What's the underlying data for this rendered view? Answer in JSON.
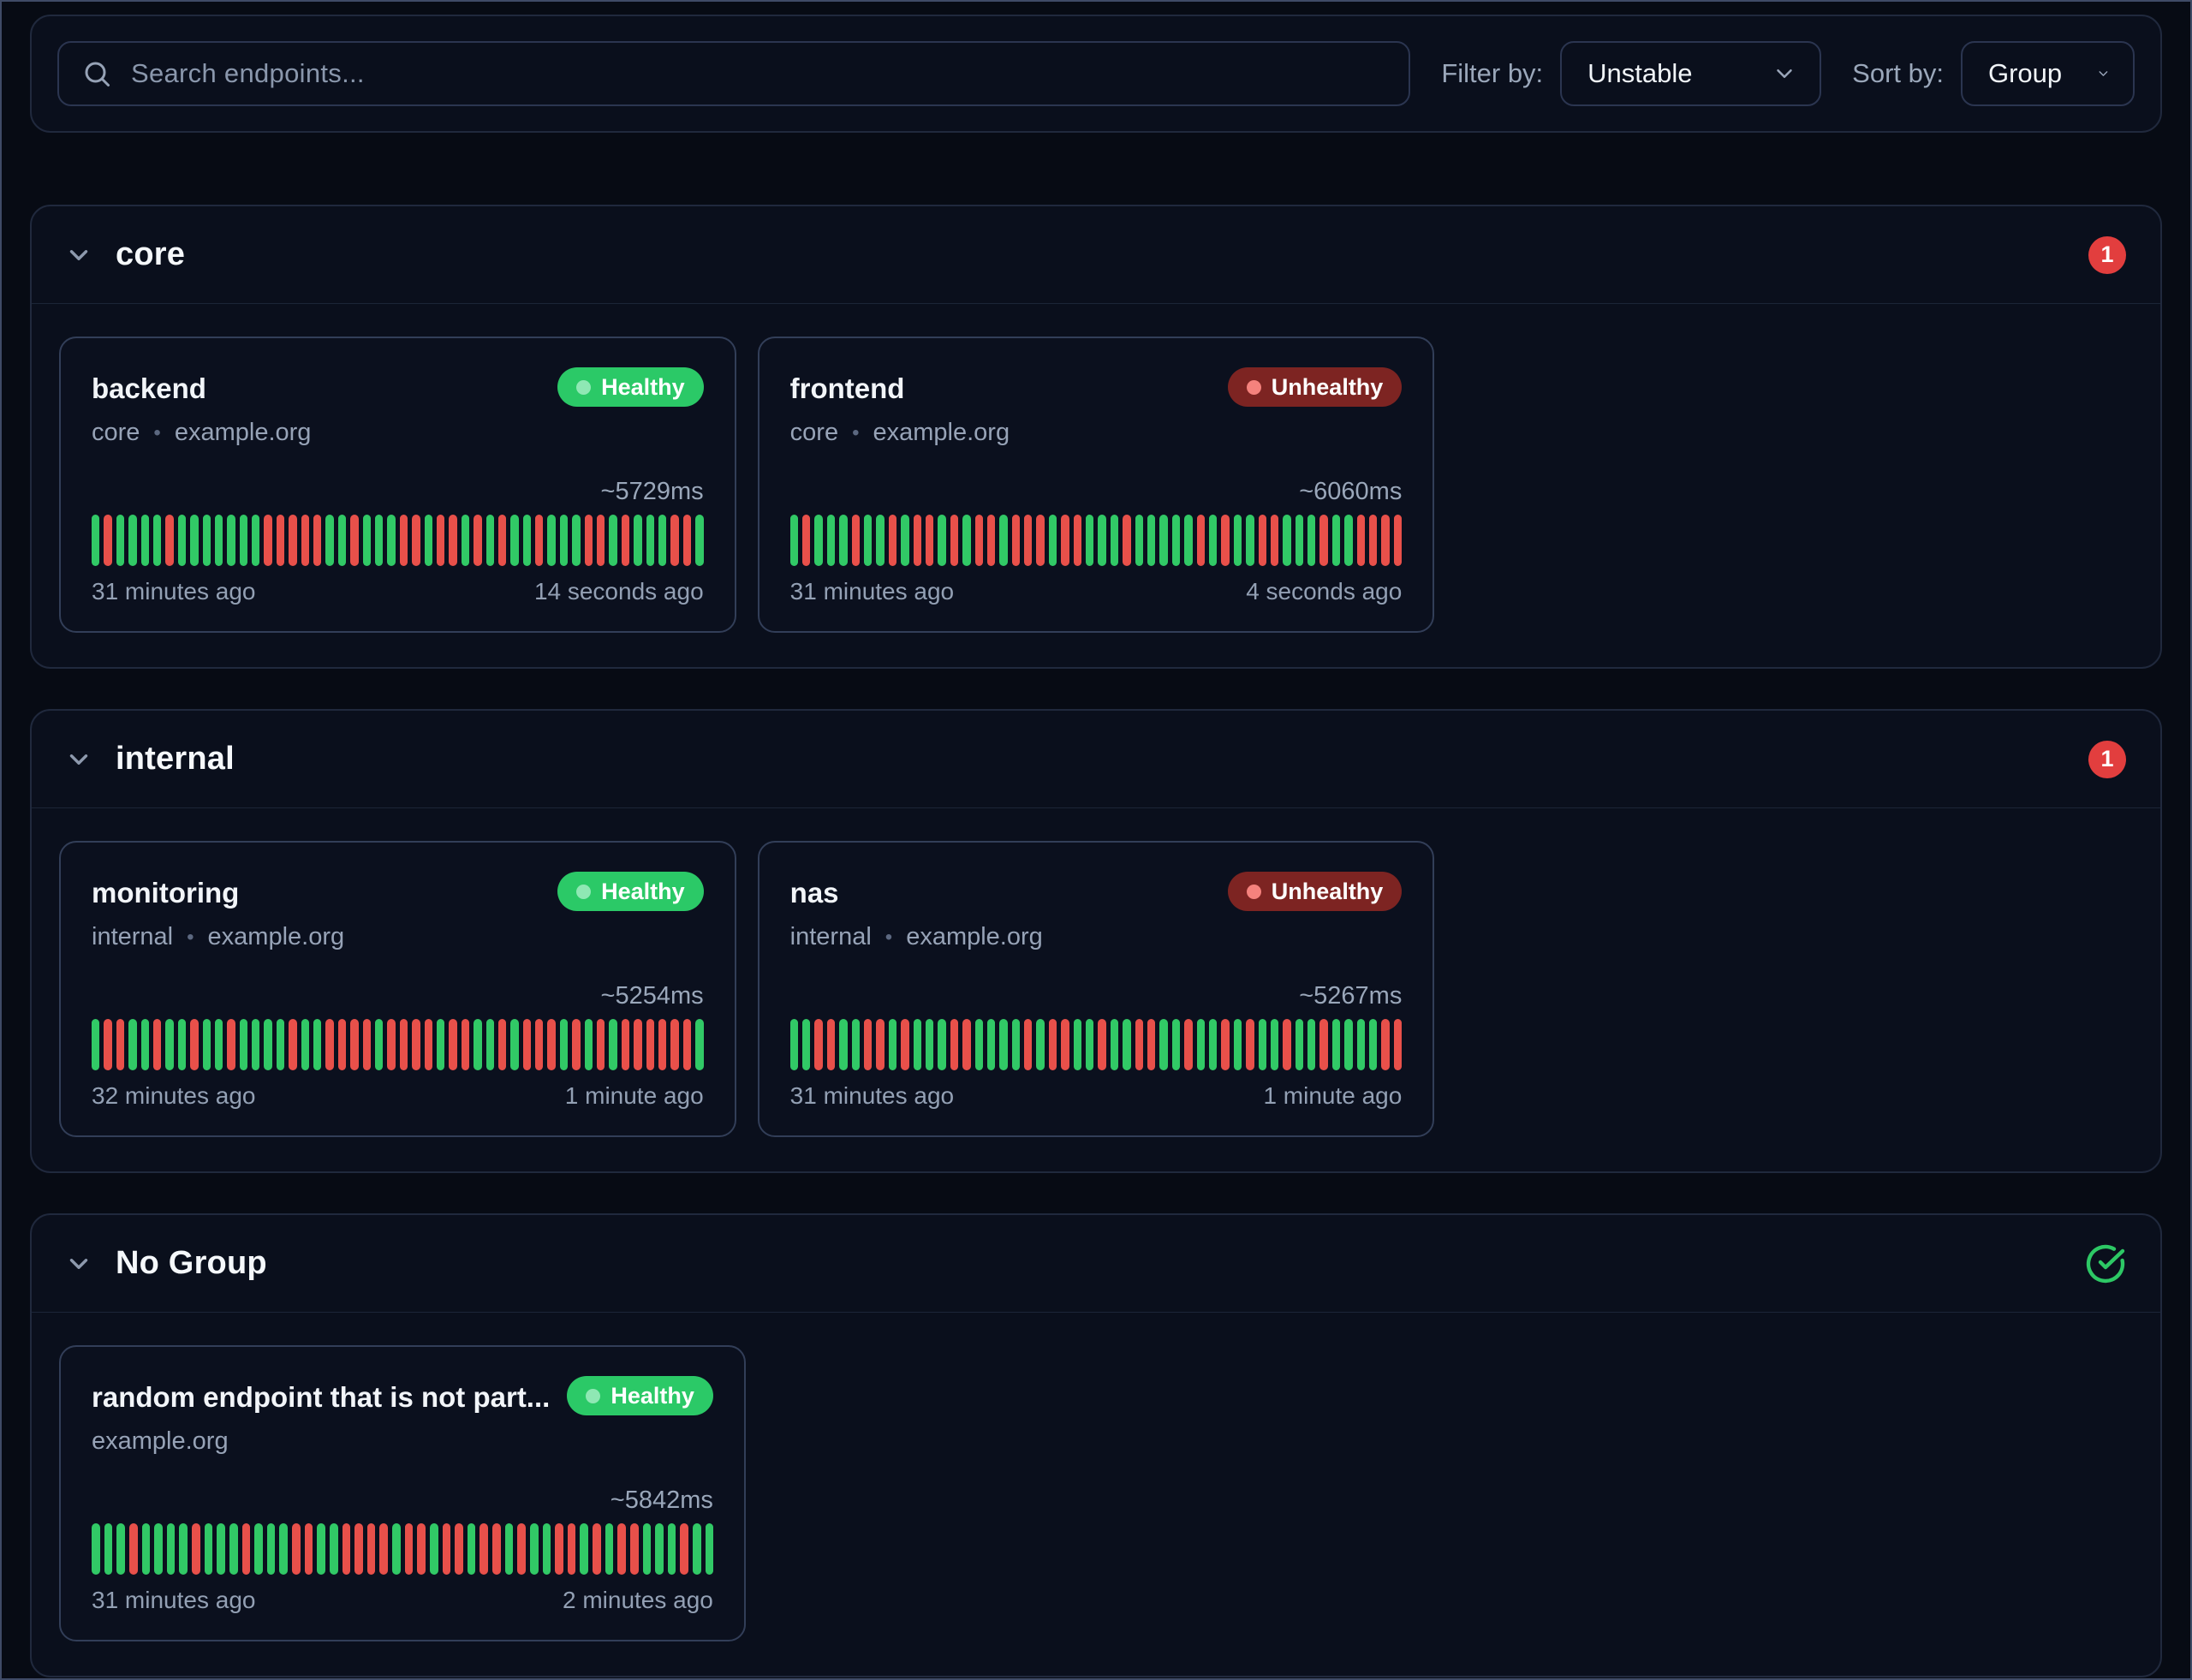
{
  "toolbar": {
    "search_placeholder": "Search endpoints...",
    "filter_label": "Filter by:",
    "filter_value": "Unstable",
    "sort_label": "Sort by:",
    "sort_value": "Group"
  },
  "colors": {
    "background": "#070b14",
    "panel": "#0a0f1c",
    "card": "#0b101e",
    "healthy_green": "#2bc967",
    "unhealthy_maroon": "#7d2422",
    "bar_green": "#31c966",
    "bar_red": "#e8504a",
    "count_badge_red": "#e23e3e",
    "check_green": "#2dc865"
  },
  "groups": [
    {
      "name": "core",
      "badge_type": "count",
      "badge": "1",
      "endpoints": [
        {
          "name": "backend",
          "status": "Healthy",
          "group_label": "core",
          "host": "example.org",
          "response_time": "~5729ms",
          "oldest": "31 minutes ago",
          "newest": "14 seconds ago",
          "history": "GRGGGGRGGGGGGGRRRRRGGRGGGRRGRRGRGRGGRGGGRRGRGGGRRG"
        },
        {
          "name": "frontend",
          "status": "Unhealthy",
          "group_label": "core",
          "host": "example.org",
          "response_time": "~6060ms",
          "oldest": "31 minutes ago",
          "newest": "4 seconds ago",
          "history": "GRGGGRGGRGRRGRGRRGRRRGRRGGGRGGGGGRGRGGRRGGGRGGRRRR"
        }
      ]
    },
    {
      "name": "internal",
      "badge_type": "count",
      "badge": "1",
      "endpoints": [
        {
          "name": "monitoring",
          "status": "Healthy",
          "group_label": "internal",
          "host": "example.org",
          "response_time": "~5254ms",
          "oldest": "32 minutes ago",
          "newest": "1 minute ago",
          "history": "GRRGGRGGRGGRGGGGRGGRRRRGRRRRGRRGGRGRRRGRGRGRRRRRRG"
        },
        {
          "name": "nas",
          "status": "Unhealthy",
          "group_label": "internal",
          "host": "example.org",
          "response_time": "~5267ms",
          "oldest": "31 minutes ago",
          "newest": "1 minute ago",
          "history": "GGRRGGRRGRGGGRRGGGGRGRRGGRGGRRGGRGGRGRGGRGGRGGGGRR"
        }
      ]
    },
    {
      "name": "No Group",
      "badge_type": "ok",
      "badge": "",
      "endpoints": [
        {
          "name": "random endpoint that is not part...",
          "status": "Healthy",
          "group_label": null,
          "host": "example.org",
          "response_time": "~5842ms",
          "oldest": "31 minutes ago",
          "newest": "2 minutes ago",
          "history": "GGGRGGGGRGGGRGGGRRGGRRRRGRRGRRGRRGRGGRRGRGRRGGGRGG"
        }
      ]
    }
  ]
}
